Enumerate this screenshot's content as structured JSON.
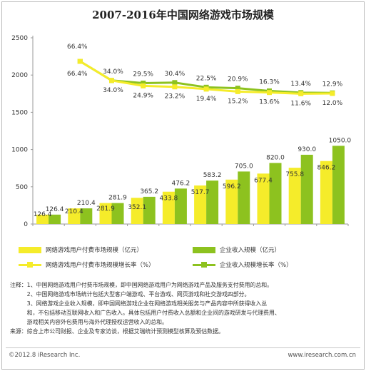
{
  "title": "2007-2016年中国网络游戏市场规模",
  "chart_data": {
    "type": "bar",
    "categories": [
      "2007",
      "2008",
      "2009",
      "2010",
      "2011",
      "2012e",
      "2013e",
      "2014e",
      "2015e",
      "2016e"
    ],
    "y_ticks": [
      "0",
      "500",
      "1000",
      "1500",
      "2000",
      "2500"
    ],
    "ylim": [
      0,
      2500
    ],
    "series": [
      {
        "name": "网络游戏用户付费市场规模（亿元）",
        "kind": "bar",
        "color": "#f5ec2a",
        "values": [
          126.4,
          210.4,
          281.9,
          352.1,
          433.8,
          517.7,
          596.2,
          677.4,
          755.8,
          846.2
        ]
      },
      {
        "name": "企业收入规模（亿元）",
        "kind": "bar",
        "color": "#8dc21f",
        "values": [
          126.4,
          210.4,
          281.9,
          365.2,
          476.2,
          583.2,
          705.0,
          820.0,
          930.0,
          1050.0
        ]
      },
      {
        "name": "网络游戏用户付费市场规模增长率（%）",
        "kind": "line",
        "color": "#f5ec2a",
        "values": [
          null,
          66.4,
          34.0,
          24.9,
          23.2,
          19.4,
          15.2,
          13.6,
          11.6,
          12.0
        ],
        "labels": [
          "",
          "66.4%",
          "34.0%",
          "24.9%",
          "23.2%",
          "19.4%",
          "15.2%",
          "13.6%",
          "11.6%",
          "12.0%"
        ]
      },
      {
        "name": "企业收入规模增长率（%）",
        "kind": "line",
        "color": "#8dc21f",
        "values": [
          null,
          66.4,
          34.0,
          29.5,
          30.4,
          22.5,
          20.9,
          16.3,
          13.4,
          12.9
        ],
        "labels": [
          "",
          "66.4%",
          "34.0%",
          "29.5%",
          "30.4%",
          "22.5%",
          "20.9%",
          "16.3%",
          "13.4%",
          "12.9%"
        ]
      }
    ],
    "bar_labels_a": [
      "126.4",
      "210.4",
      "281.9",
      "352.1",
      "433.8",
      "517.7",
      "596.2",
      "677.4",
      "755.8",
      "846.2"
    ],
    "bar_labels_b": [
      "126.4",
      "210.4",
      "281.9",
      "365.2",
      "476.2",
      "583.2",
      "705.0",
      "820.0",
      "930.0",
      "1050.0"
    ],
    "legend_position": "bottom",
    "grid": false
  },
  "legend": {
    "bar_a": "网络游戏用户付费市场规模（亿元）",
    "bar_b": "企业收入规模（亿元）",
    "line_a": "网络游戏用户付费市场规模增长率（%）",
    "line_b": "企业收入规模增长率（%）"
  },
  "notes": [
    "注释：1、中国网络游戏用户付费市场规模，即中国网络游戏用户为网络游戏产品及服务支付费用的总和。",
    "　　　2、中国网络游戏市场统计包括大型客户端游戏、平台游戏、网页游戏和社交游戏四部分。",
    "　　　3、网络游戏企业收入规模，即中国网络游戏企业在网络游戏相关服务与产品内容中所获得收入总",
    "　　　和，不包括移动互联网收入和广告收入。具体包括用户付费收入总额和企业间的游戏研发与代理费用、",
    "　　　游戏相关内容外包费用与海外代理授权运营收入的总和。",
    "来源：综合上市公司财报、企业及专家访谈，根据艾瑞统计预测模型核算及预估数据。"
  ],
  "footer": {
    "copyright": "©2012.8 iResearch Inc.",
    "website": "www.iresearch.com.cn"
  }
}
